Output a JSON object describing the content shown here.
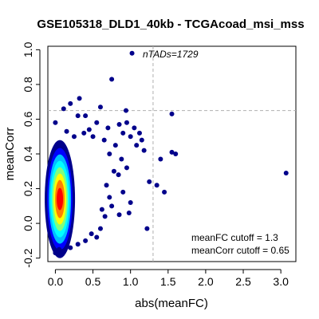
{
  "chart_data": {
    "type": "scatter",
    "title": "GSE105318_DLD1_40kb - TCGAcoad_msi_mss",
    "xlabel": "abs(meanFC)",
    "ylabel": "meanCorr",
    "xlim": [
      -0.1,
      3.2
    ],
    "ylim": [
      -0.22,
      1.02
    ],
    "x_ticks": [
      "0.0",
      "0.5",
      "1.0",
      "1.5",
      "2.0",
      "2.5",
      "3.0"
    ],
    "y_ticks": [
      "-0.2",
      "0.0",
      "0.2",
      "0.4",
      "0.6",
      "0.8",
      "1.0"
    ],
    "grid": false,
    "point_color": "#00008B",
    "density_colors": [
      "#00008B",
      "#0000FF",
      "#00BFFF",
      "#00FFFF",
      "#7FFF7F",
      "#FFFF00",
      "#FF7F00",
      "#FF0000"
    ],
    "cutoffs": {
      "meanFC": 1.3,
      "meanCorr": 0.65
    },
    "annotations": {
      "count": "nTADs=1729",
      "fc_cutoff": "meanFC cutoff = 1.3",
      "corr_cutoff": "meanCorr cutoff = 0.65"
    },
    "outliers": [
      {
        "x": 1.02,
        "y": 0.98
      },
      {
        "x": 0.75,
        "y": 0.83
      },
      {
        "x": 0.32,
        "y": 0.72
      },
      {
        "x": 0.2,
        "y": 0.69
      },
      {
        "x": 0.6,
        "y": 0.67
      },
      {
        "x": 0.11,
        "y": 0.66
      },
      {
        "x": 0.94,
        "y": 0.65
      },
      {
        "x": 1.55,
        "y": 0.63
      },
      {
        "x": 0.4,
        "y": 0.62
      },
      {
        "x": 0.0,
        "y": 0.58
      },
      {
        "x": 0.3,
        "y": 0.62
      },
      {
        "x": 0.85,
        "y": 0.57
      },
      {
        "x": 0.55,
        "y": 0.58
      },
      {
        "x": 0.7,
        "y": 0.55
      },
      {
        "x": 0.95,
        "y": 0.58
      },
      {
        "x": 1.05,
        "y": 0.55
      },
      {
        "x": 1.0,
        "y": 0.5
      },
      {
        "x": 0.9,
        "y": 0.52
      },
      {
        "x": 1.12,
        "y": 0.52
      },
      {
        "x": 1.08,
        "y": 0.45
      },
      {
        "x": 1.15,
        "y": 0.48
      },
      {
        "x": 1.18,
        "y": 0.42
      },
      {
        "x": 0.8,
        "y": 0.45
      },
      {
        "x": 0.65,
        "y": 0.48
      },
      {
        "x": 1.55,
        "y": 0.41
      },
      {
        "x": 1.6,
        "y": 0.4
      },
      {
        "x": 1.4,
        "y": 0.37
      },
      {
        "x": 0.88,
        "y": 0.37
      },
      {
        "x": 0.95,
        "y": 0.32
      },
      {
        "x": 1.25,
        "y": 0.24
      },
      {
        "x": 1.35,
        "y": 0.22
      },
      {
        "x": 1.45,
        "y": 0.18
      },
      {
        "x": 3.07,
        "y": 0.29
      },
      {
        "x": 0.84,
        "y": 0.28
      },
      {
        "x": 0.9,
        "y": 0.18
      },
      {
        "x": 1.0,
        "y": 0.12
      },
      {
        "x": 0.98,
        "y": 0.06
      },
      {
        "x": 1.22,
        "y": -0.03
      },
      {
        "x": 0.85,
        "y": 0.05
      },
      {
        "x": 0.75,
        "y": 0.1
      },
      {
        "x": 0.6,
        "y": -0.03
      },
      {
        "x": 0.55,
        "y": -0.08
      },
      {
        "x": 0.48,
        "y": -0.06
      },
      {
        "x": 0.4,
        "y": -0.1
      },
      {
        "x": 0.3,
        "y": -0.12
      },
      {
        "x": 0.2,
        "y": -0.14
      },
      {
        "x": 0.1,
        "y": -0.16
      },
      {
        "x": 0.0,
        "y": -0.17
      },
      {
        "x": 0.05,
        "y": -0.15
      },
      {
        "x": 0.15,
        "y": 0.53
      },
      {
        "x": 0.45,
        "y": 0.54
      },
      {
        "x": 0.38,
        "y": 0.52
      },
      {
        "x": 0.5,
        "y": 0.5
      },
      {
        "x": 0.25,
        "y": 0.5
      },
      {
        "x": 0.72,
        "y": 0.4
      },
      {
        "x": 0.78,
        "y": 0.3
      },
      {
        "x": 0.68,
        "y": 0.22
      },
      {
        "x": 0.72,
        "y": 0.15
      },
      {
        "x": 0.62,
        "y": 0.08
      },
      {
        "x": 0.66,
        "y": 0.04
      }
    ]
  }
}
